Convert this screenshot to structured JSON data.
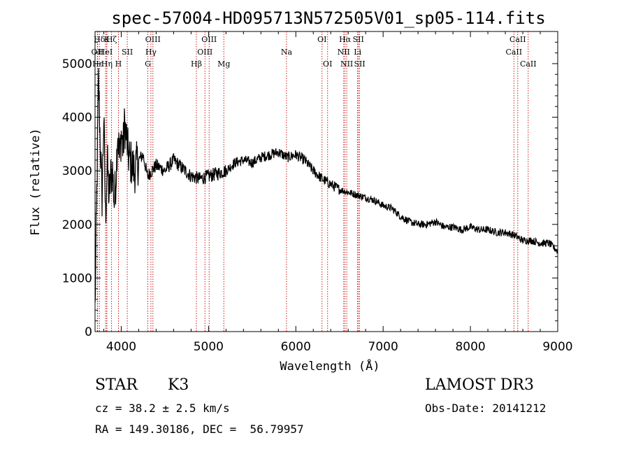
{
  "chart_data": {
    "type": "line",
    "title": "spec-57004-HD095713N572505V01_sp05-114.fits",
    "xlabel": "Wavelength (Å)",
    "ylabel": "Flux (relative)",
    "xlim": [
      3700,
      9000
    ],
    "ylim": [
      0,
      5600
    ],
    "xticks": [
      4000,
      5000,
      6000,
      7000,
      8000,
      9000
    ],
    "xtick_labels": [
      "4000",
      "5000",
      "6000",
      "7000",
      "8000",
      "9000"
    ],
    "yticks": [
      0,
      1000,
      2000,
      3000,
      4000,
      5000
    ],
    "ytick_labels": [
      "0",
      "1000",
      "2000",
      "3000",
      "4000",
      "5000"
    ],
    "series": [
      {
        "name": "spectrum",
        "x": [
          3700,
          3720,
          3740,
          3760,
          3780,
          3800,
          3820,
          3840,
          3860,
          3880,
          3900,
          3920,
          3940,
          3960,
          3980,
          4000,
          4020,
          4040,
          4060,
          4080,
          4100,
          4150,
          4200,
          4250,
          4300,
          4350,
          4400,
          4500,
          4600,
          4700,
          4800,
          4900,
          5000,
          5100,
          5200,
          5300,
          5400,
          5500,
          5600,
          5700,
          5800,
          5900,
          6000,
          6100,
          6200,
          6300,
          6400,
          6500,
          6600,
          6700,
          6800,
          6900,
          7000,
          7100,
          7200,
          7300,
          7400,
          7500,
          7600,
          7700,
          7800,
          7900,
          8000,
          8100,
          8200,
          8300,
          8400,
          8500,
          8600,
          8700,
          8800,
          8900,
          9000
        ],
        "y": [
          400,
          2600,
          4700,
          3500,
          2500,
          4000,
          2100,
          3200,
          2500,
          2900,
          3000,
          2400,
          2900,
          3800,
          3200,
          3700,
          3400,
          3900,
          3600,
          3300,
          3200,
          3000,
          3200,
          3300,
          2900,
          3000,
          3100,
          3000,
          3200,
          3050,
          2900,
          2850,
          2900,
          2950,
          3000,
          3150,
          3200,
          3150,
          3250,
          3300,
          3350,
          3250,
          3300,
          3200,
          3000,
          2850,
          2750,
          2650,
          2600,
          2550,
          2500,
          2450,
          2350,
          2300,
          2150,
          2050,
          2000,
          2000,
          2050,
          1950,
          1950,
          1900,
          1950,
          1900,
          1900,
          1850,
          1850,
          1800,
          1700,
          1700,
          1650,
          1650,
          1500
        ]
      }
    ],
    "lines": [
      {
        "label": "Hδ",
        "x": 3750,
        "row": 1
      },
      {
        "label": "OII",
        "x": 3727,
        "row": 2
      },
      {
        "label": "Hε",
        "x": 3730,
        "row": 3
      },
      {
        "label": "K",
        "x": 3834,
        "row": 1
      },
      {
        "label": "HeI",
        "x": 3820,
        "row": 2
      },
      {
        "label": "Hη",
        "x": 3835,
        "row": 3
      },
      {
        "label": "Hζ",
        "x": 3889,
        "row": 1
      },
      {
        "label": "SII",
        "x": 4069,
        "row": 2
      },
      {
        "label": "H",
        "x": 3968,
        "row": 3
      },
      {
        "label": "OIII",
        "x": 4363,
        "row": 1
      },
      {
        "label": "Hγ",
        "x": 4340,
        "row": 2
      },
      {
        "label": "G",
        "x": 4305,
        "row": 3
      },
      {
        "label": "Hβ",
        "x": 4861,
        "row": 3
      },
      {
        "label": "OIII",
        "x": 5007,
        "row": 1
      },
      {
        "label": "OIII",
        "x": 4959,
        "row": 2
      },
      {
        "label": "Mg",
        "x": 5175,
        "row": 3
      },
      {
        "label": "Na",
        "x": 5893,
        "row": 2
      },
      {
        "label": "OI",
        "x": 6300,
        "row": 1
      },
      {
        "label": "OI",
        "x": 6364,
        "row": 3
      },
      {
        "label": "Hα",
        "x": 6563,
        "row": 1
      },
      {
        "label": "SII",
        "x": 6716,
        "row": 1
      },
      {
        "label": "NII",
        "x": 6548,
        "row": 2
      },
      {
        "label": "Li",
        "x": 6708,
        "row": 2
      },
      {
        "label": "NII",
        "x": 6583,
        "row": 3
      },
      {
        "label": "SII",
        "x": 6731,
        "row": 3
      },
      {
        "label": "CaII",
        "x": 8542,
        "row": 1
      },
      {
        "label": "CaII",
        "x": 8498,
        "row": 2
      },
      {
        "label": "CaII",
        "x": 8662,
        "row": 3
      }
    ]
  },
  "info": {
    "class_label": "STAR",
    "subclass": "K3",
    "survey": "LAMOST DR3",
    "redshift": "cz = 38.2 ± 2.5 km/s",
    "obs_date": "Obs-Date: 20141212",
    "coordinates": "RA = 149.30186, DEC =  56.79957"
  }
}
